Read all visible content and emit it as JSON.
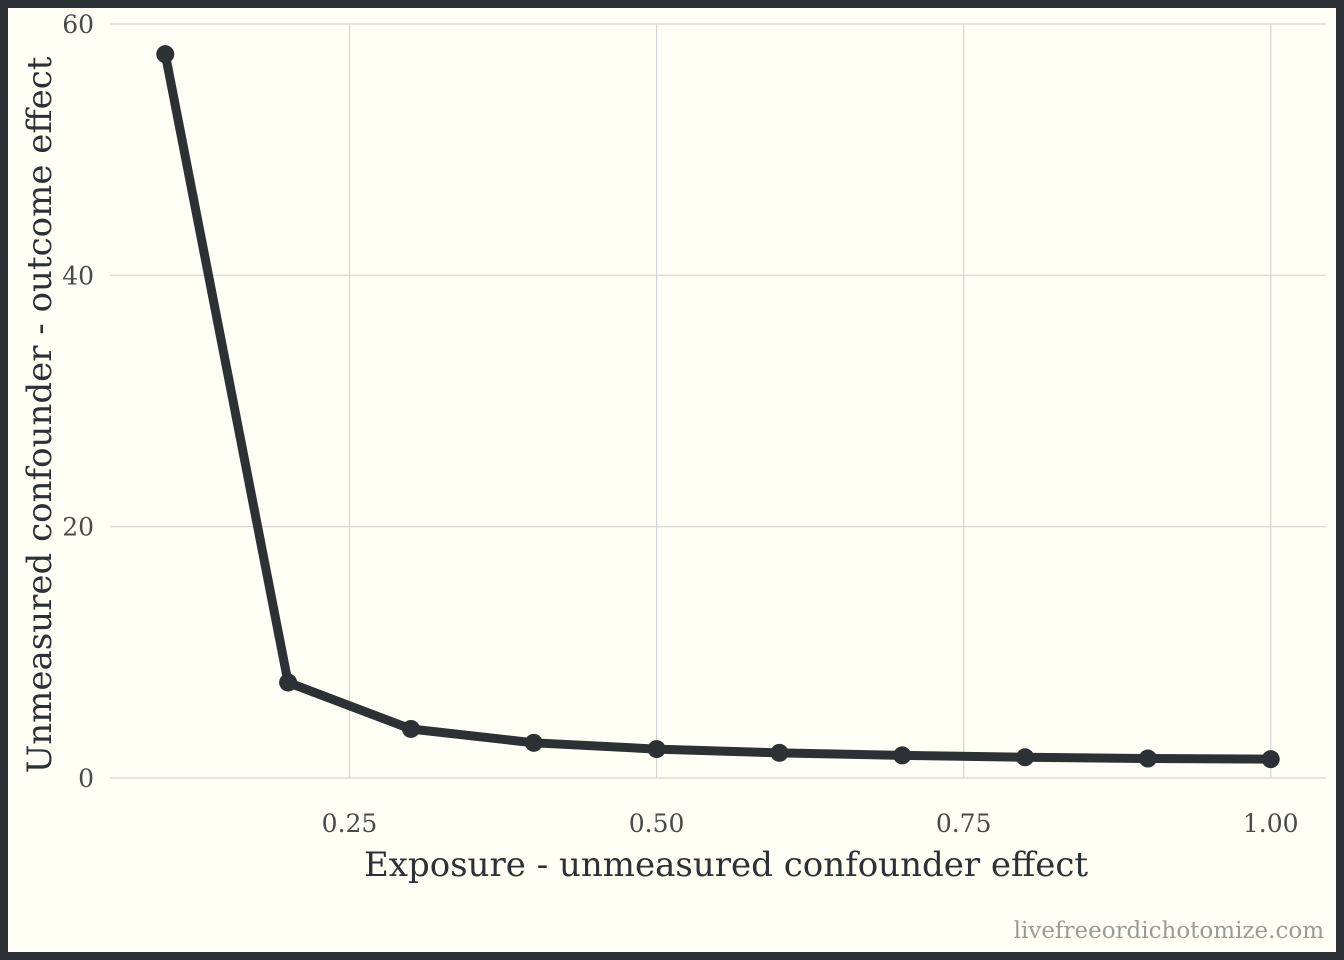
{
  "chart_data": {
    "type": "line",
    "xlabel": "Exposure - unmeasured confounder effect",
    "ylabel": "Unmeasured confounder - outcome effect",
    "x": [
      0.1,
      0.2,
      0.3,
      0.4,
      0.5,
      0.6,
      0.7,
      0.8,
      0.9,
      1.0
    ],
    "series": [
      {
        "values": [
          57.6,
          7.6,
          3.9,
          2.8,
          2.3,
          2.0,
          1.8,
          1.65,
          1.55,
          1.5
        ]
      }
    ],
    "xlim": [
      0.055,
      1.045
    ],
    "ylim": [
      0,
      60
    ],
    "xticks": [
      0.25,
      0.5,
      0.75,
      1.0
    ],
    "xtick_labels": [
      "0.25",
      "0.50",
      "0.75",
      "1.00"
    ],
    "yticks": [
      0,
      20,
      40,
      60
    ],
    "ytick_labels": [
      "0",
      "20",
      "40",
      "60"
    ],
    "grid": true,
    "legend": "none",
    "colors": {
      "line": "#2b3135",
      "background": "#fffff5",
      "border": "#2b3135"
    }
  },
  "watermark": "livefreeordichotomize.com"
}
